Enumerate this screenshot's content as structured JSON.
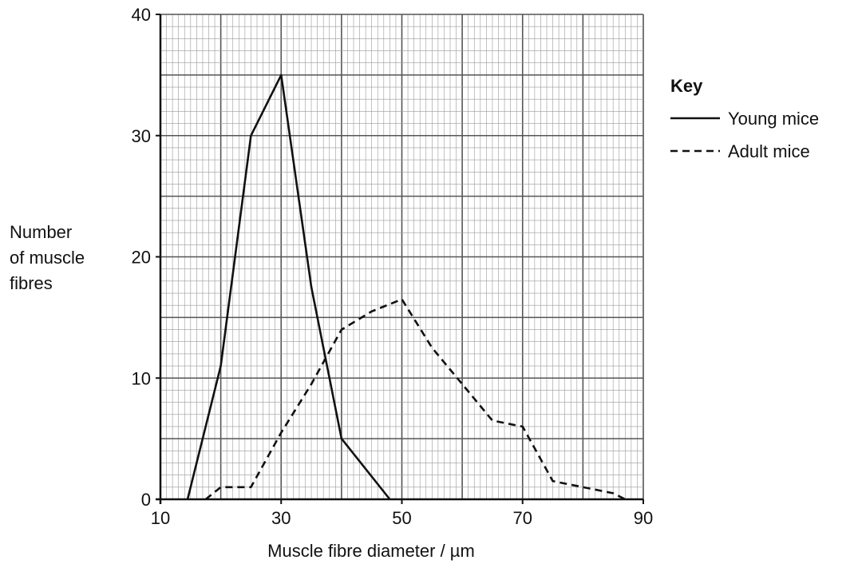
{
  "chart_data": {
    "type": "line",
    "title": "",
    "xlabel": "Muscle fibre diameter / µm",
    "ylabel": [
      "Number",
      "of muscle",
      "fibres"
    ],
    "xlim": [
      10,
      90
    ],
    "ylim": [
      0,
      40
    ],
    "x_ticks": [
      "10",
      "30",
      "50",
      "70",
      "90"
    ],
    "y_ticks": [
      "0",
      "10",
      "20",
      "30",
      "40"
    ],
    "grid": true,
    "legend_title": "Key",
    "legend_position": "top-right",
    "series": [
      {
        "name": "Young mice",
        "style": "solid",
        "points": [
          [
            14.5,
            0
          ],
          [
            20,
            11
          ],
          [
            25,
            30
          ],
          [
            30,
            35
          ],
          [
            35,
            17.5
          ],
          [
            40,
            5
          ],
          [
            48,
            0
          ]
        ]
      },
      {
        "name": "Adult mice",
        "style": "dashed",
        "points": [
          [
            17.5,
            0
          ],
          [
            20,
            1
          ],
          [
            25,
            1
          ],
          [
            30,
            5.5
          ],
          [
            35,
            9.5
          ],
          [
            40,
            14
          ],
          [
            45,
            15.5
          ],
          [
            50,
            16.5
          ],
          [
            55,
            12.5
          ],
          [
            60,
            9.5
          ],
          [
            65,
            6.5
          ],
          [
            70,
            6
          ],
          [
            75,
            1.5
          ],
          [
            80,
            1
          ],
          [
            85,
            0.5
          ],
          [
            87,
            0
          ]
        ]
      }
    ]
  },
  "colors": {
    "line": "#111111",
    "grid_minor": "#9a9a9a",
    "grid_major": "#555555",
    "axis": "#111111"
  }
}
